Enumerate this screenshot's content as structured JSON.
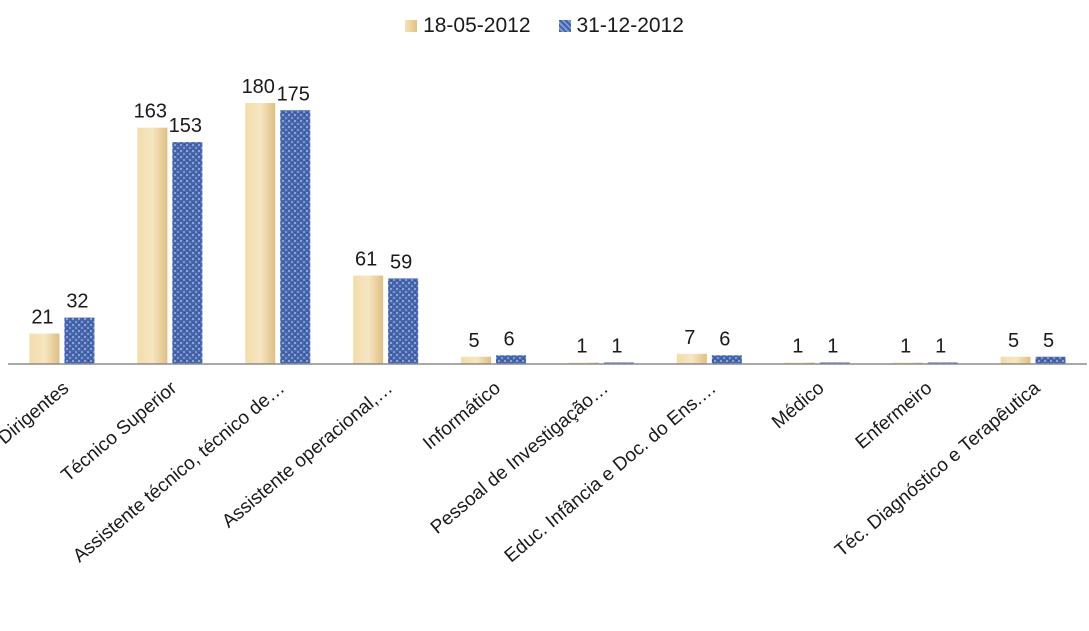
{
  "chart_data": {
    "type": "bar",
    "title": "",
    "xlabel": "",
    "ylabel": "",
    "ylim": [
      0,
      200
    ],
    "grid": false,
    "legend_position": "top-center",
    "categories": [
      "Dirigentes",
      "Técnico Superior",
      "Assistente técnico, técnico de…",
      "Assistente operacional,…",
      "Informático",
      "Pessoal de Investigação…",
      "Educ. Infância e Doc. do Ens.…",
      "Médico",
      "Enfermeiro",
      "Téc. Diagnóstico e Terapêutica"
    ],
    "series": [
      {
        "name": "18-05-2012",
        "color": "#eccf98",
        "values": [
          21,
          163,
          180,
          61,
          5,
          1,
          7,
          1,
          1,
          5
        ]
      },
      {
        "name": "31-12-2012",
        "color": "#4a6fb5",
        "values": [
          32,
          153,
          175,
          59,
          6,
          1,
          6,
          1,
          1,
          5
        ]
      }
    ]
  }
}
